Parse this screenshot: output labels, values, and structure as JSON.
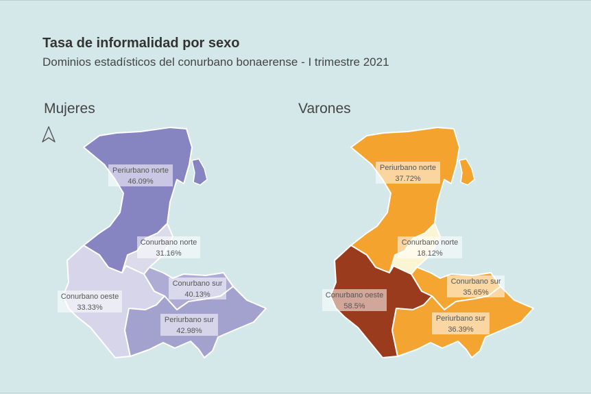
{
  "title": "Tasa de informalidad por sexo",
  "subtitle": "Dominios estadísticos del conurbano bonaerense - I trimestre 2021",
  "north_arrow_icon": "north-arrow-icon",
  "panels": [
    {
      "name": "Mujeres",
      "regions": [
        {
          "name": "Periurbano norte",
          "value": "46.09%",
          "rate": 46.09,
          "color": "#8784c2"
        },
        {
          "name": "Conurbano norte",
          "value": "31.16%",
          "rate": 31.16,
          "color": "#dcdbeb"
        },
        {
          "name": "Conurbano oeste",
          "value": "33.33%",
          "rate": 33.33,
          "color": "#d6d5e9"
        },
        {
          "name": "Conurbano sur",
          "value": "40.13%",
          "rate": 40.13,
          "color": "#aeacd4"
        },
        {
          "name": "Periurbano sur",
          "value": "42.98%",
          "rate": 42.98,
          "color": "#a3a1ce"
        }
      ]
    },
    {
      "name": "Varones",
      "regions": [
        {
          "name": "Periurbano norte",
          "value": "37.72%",
          "rate": 37.72,
          "color": "#f4a32e"
        },
        {
          "name": "Conurbano norte",
          "value": "18.12%",
          "rate": 18.12,
          "color": "#fcf5d4"
        },
        {
          "name": "Conurbano oeste",
          "value": "58.5%",
          "rate": 58.5,
          "color": "#9b3b1e"
        },
        {
          "name": "Conurbano sur",
          "value": "35.65%",
          "rate": 35.65,
          "color": "#f5a630"
        },
        {
          "name": "Periurbano sur",
          "value": "36.39%",
          "rate": 36.39,
          "color": "#f4a431"
        }
      ]
    }
  ]
}
